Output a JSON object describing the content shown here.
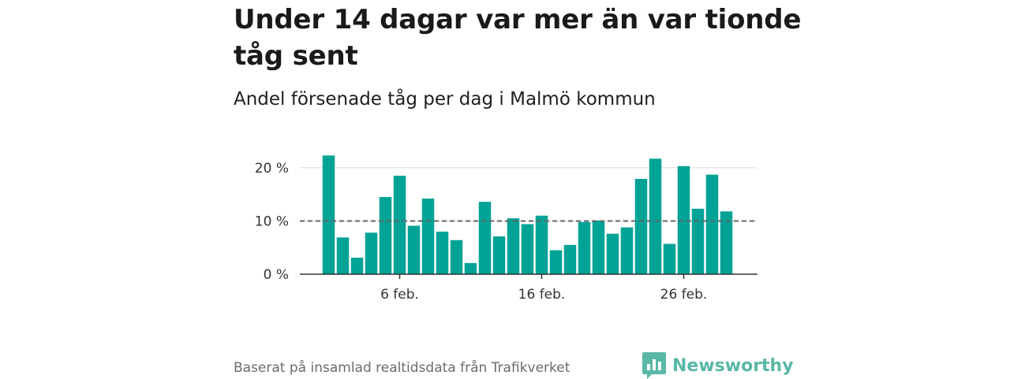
{
  "header": {
    "title": "Under 14 dagar var mer än var tionde tåg sent",
    "subtitle": "Andel försenade tåg per dag i Malmö kommun"
  },
  "footer": {
    "source": "Baserat på insamlad realtidsdata från Trafikverket",
    "brand": "Newsworthy"
  },
  "colors": {
    "bar": "#00a396",
    "reference_line": "#666666",
    "grid": "#d9d9d9",
    "brand": "#59b7a6"
  },
  "icons": {
    "logo": "newsworthy-logo-icon"
  },
  "chart_data": {
    "type": "bar",
    "x_start": "1 feb.",
    "categories": [
      "1 feb.",
      "2 feb.",
      "3 feb.",
      "4 feb.",
      "5 feb.",
      "6 feb.",
      "7 feb.",
      "8 feb.",
      "9 feb.",
      "10 feb.",
      "11 feb.",
      "12 feb.",
      "13 feb.",
      "14 feb.",
      "15 feb.",
      "16 feb.",
      "17 feb.",
      "18 feb.",
      "19 feb.",
      "20 feb.",
      "21 feb.",
      "22 feb.",
      "23 feb.",
      "24 feb.",
      "25 feb.",
      "26 feb.",
      "27 feb.",
      "28 feb.",
      "29 feb."
    ],
    "values": [
      22.3,
      6.9,
      3.1,
      7.8,
      14.5,
      18.5,
      9.1,
      14.2,
      8.0,
      6.4,
      2.1,
      13.6,
      7.1,
      10.5,
      9.4,
      11.0,
      4.5,
      5.5,
      9.8,
      10.1,
      7.6,
      8.8,
      17.9,
      21.7,
      5.7,
      20.3,
      12.3,
      18.7,
      11.8
    ],
    "reference_value": 10,
    "xticks": [
      "6 feb.",
      "16 feb.",
      "26 feb."
    ],
    "yticks": [
      "0 %",
      "10 %",
      "20 %"
    ],
    "ytick_values": [
      0,
      10,
      20
    ],
    "ylim": [
      0,
      22.5
    ],
    "xlabel": "",
    "ylabel": "",
    "grid": true
  }
}
